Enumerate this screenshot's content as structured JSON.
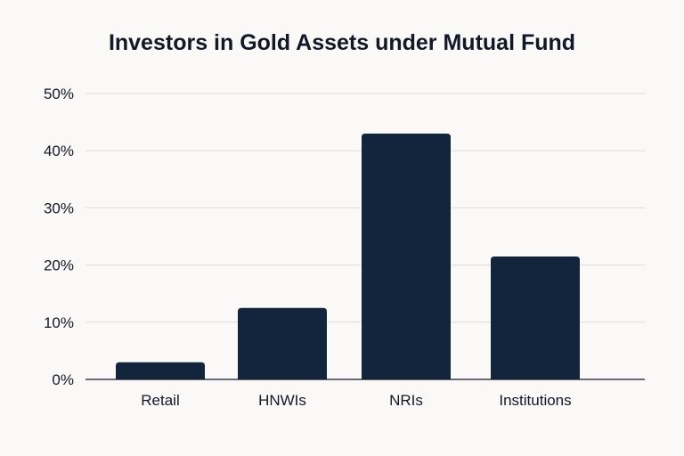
{
  "chart_data": {
    "type": "bar",
    "title": "Investors in Gold Assets under Mutual Fund",
    "xlabel": "",
    "ylabel": "",
    "categories": [
      "Retail",
      "HNWIs",
      "NRIs",
      "Institutions"
    ],
    "values": [
      3,
      12.5,
      43,
      21.5
    ],
    "ylim": [
      0,
      50
    ],
    "y_ticks": [
      "0%",
      "10%",
      "20%",
      "30%",
      "40%",
      "50%"
    ],
    "grid": true,
    "bar_color": "#13243d"
  }
}
